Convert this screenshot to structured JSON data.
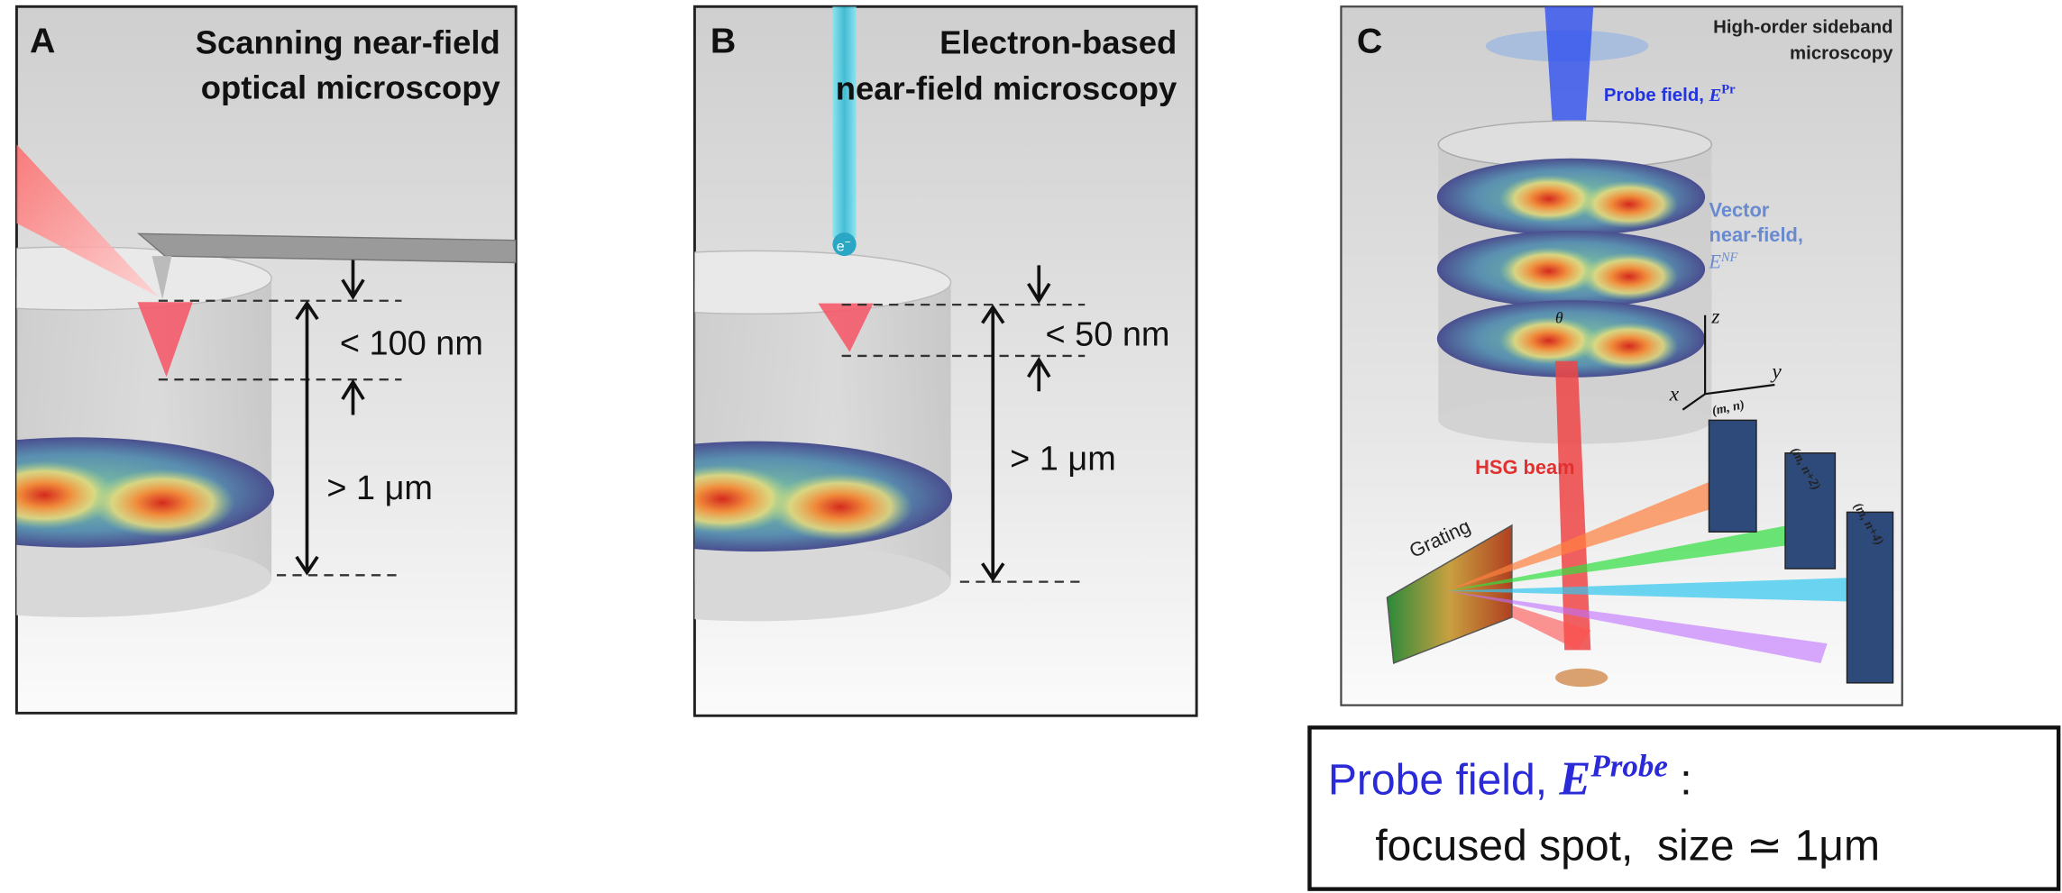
{
  "panels": [
    {
      "letter": "A",
      "title": [
        "Scanning near-field",
        "optical microscopy"
      ],
      "gap_label": "< 100 nm",
      "depth_label": "> 1 μm"
    },
    {
      "letter": "B",
      "title": [
        "Electron-based",
        "near-field microscopy"
      ],
      "gap_label": "< 50 nm",
      "depth_label": "> 1 μm",
      "electron": {
        "symbol": "e",
        "charge": "−"
      }
    },
    {
      "letter": "C",
      "title": [
        "High-order sideband",
        "microscopy"
      ],
      "probe_label": {
        "text": "Probe field, ",
        "symbol": "E",
        "sup": "Pr"
      },
      "near_field_label": {
        "lines": [
          "Vector",
          "near-field,"
        ],
        "symbol": "E",
        "sup": "NF"
      },
      "angle": "θ",
      "axes": {
        "z": "z",
        "y": "y",
        "x": "x"
      },
      "hsg_label": "HSG beam",
      "grating_label": "Grating",
      "spectra": [
        "(m, n)",
        "(m, n+2)",
        "(m, n+4)"
      ]
    }
  ],
  "note": {
    "line1": {
      "text": "Probe field, ",
      "symbol": "E",
      "sup": "Probe",
      "tail": " :"
    },
    "line2": "focused spot,  size ≃ 1μm"
  }
}
